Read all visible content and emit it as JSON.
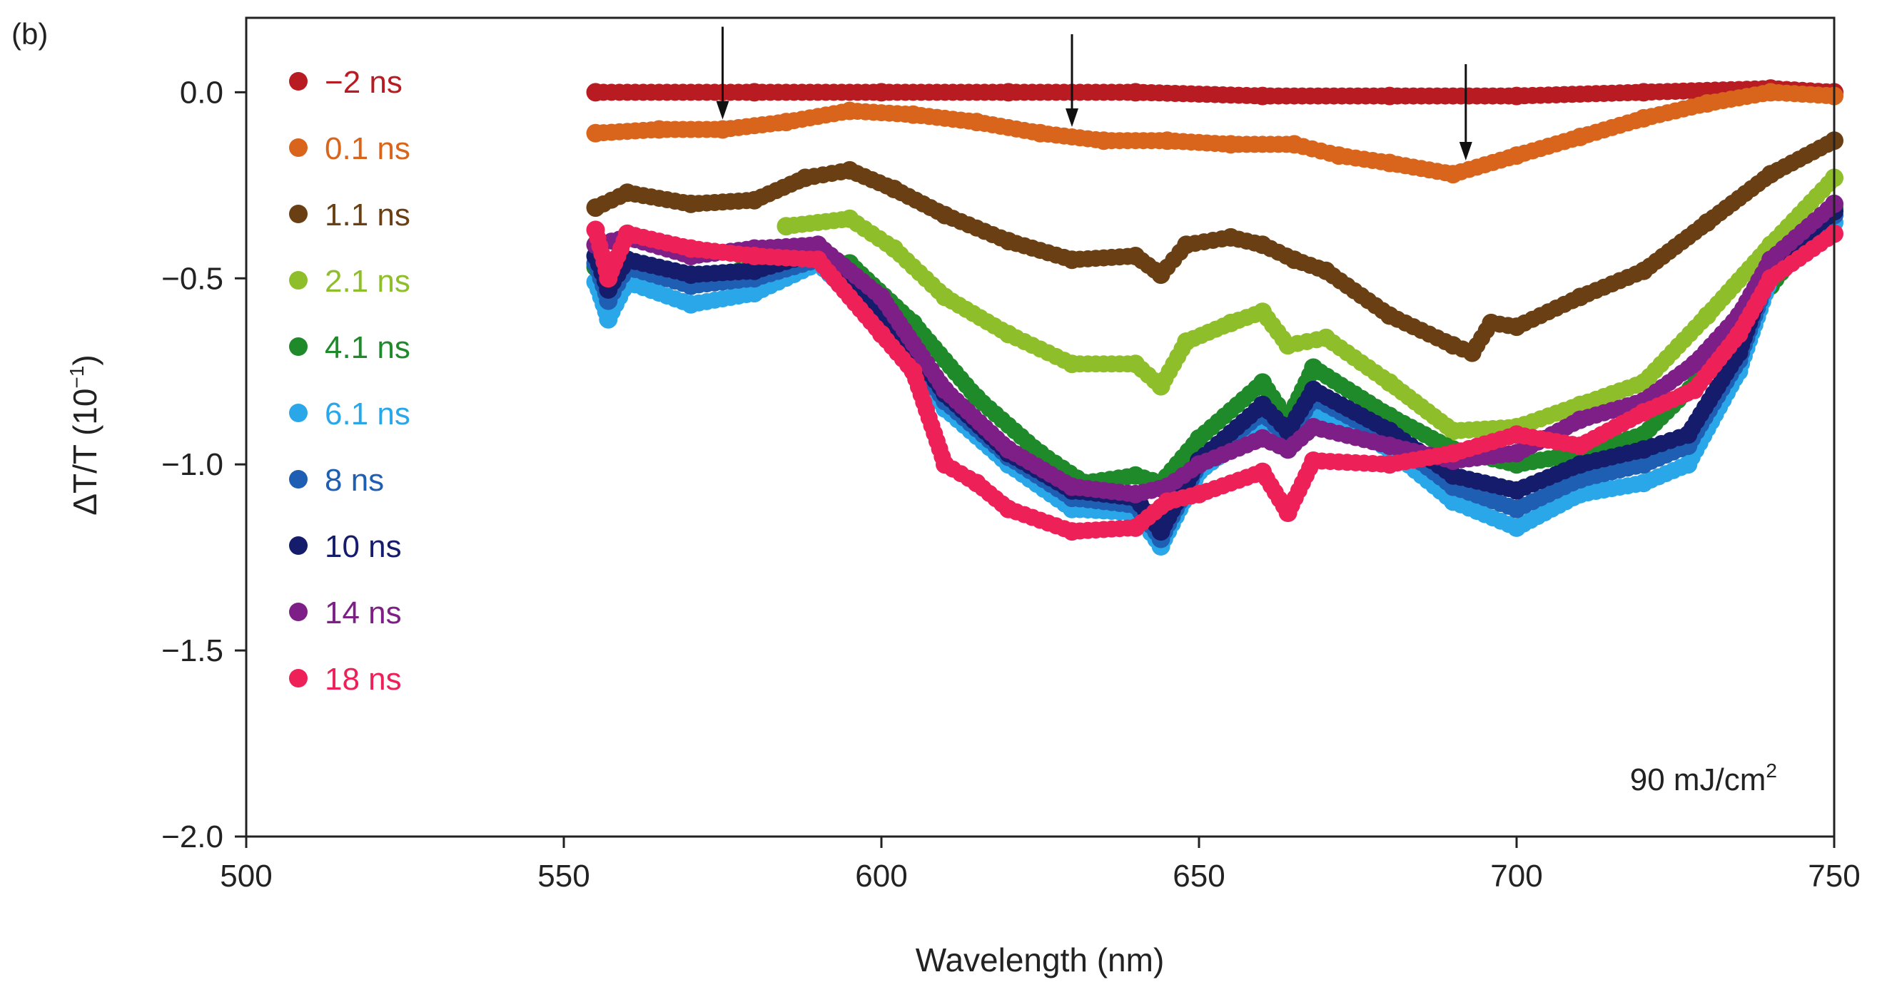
{
  "chart_data": {
    "type": "scatter",
    "panel_label": "(b)",
    "xlabel": "Wavelength (nm)",
    "ylabel_prefix": "ΔT/T (10",
    "ylabel_exponent": "−1",
    "ylabel_suffix": ")",
    "xlim": [
      500,
      750
    ],
    "ylim": [
      -2.0,
      0.2
    ],
    "x_ticks": [
      500,
      550,
      600,
      650,
      700,
      750
    ],
    "x_tick_labels": [
      "500",
      "550",
      "600",
      "650",
      "700",
      "750"
    ],
    "y_ticks": [
      0.0,
      -0.5,
      -1.0,
      -1.5,
      -2.0
    ],
    "y_tick_labels": [
      "0.0",
      "−0.5",
      "−1.0",
      "−1.5",
      "−2.0"
    ],
    "annotation_main": "90 mJ/cm",
    "annotation_sup": "2",
    "arrows_at_wavelength": [
      575,
      630,
      692
    ],
    "legend_position": "top-left",
    "series": [
      {
        "name": "−2 ns",
        "color": "#b81c22",
        "points": [
          [
            555,
            0.0
          ],
          [
            580,
            0.0
          ],
          [
            600,
            0.0
          ],
          [
            620,
            0.0
          ],
          [
            640,
            0.0
          ],
          [
            660,
            -0.01
          ],
          [
            680,
            -0.01
          ],
          [
            700,
            -0.01
          ],
          [
            720,
            0.0
          ],
          [
            740,
            0.01
          ],
          [
            750,
            0.0
          ]
        ]
      },
      {
        "name": "0.1 ns",
        "color": "#d9651d",
        "points": [
          [
            555,
            -0.11
          ],
          [
            565,
            -0.1
          ],
          [
            575,
            -0.1
          ],
          [
            585,
            -0.08
          ],
          [
            595,
            -0.05
          ],
          [
            605,
            -0.06
          ],
          [
            615,
            -0.08
          ],
          [
            625,
            -0.11
          ],
          [
            635,
            -0.13
          ],
          [
            645,
            -0.13
          ],
          [
            655,
            -0.14
          ],
          [
            665,
            -0.14
          ],
          [
            672,
            -0.17
          ],
          [
            680,
            -0.19
          ],
          [
            690,
            -0.22
          ],
          [
            700,
            -0.17
          ],
          [
            710,
            -0.12
          ],
          [
            720,
            -0.07
          ],
          [
            730,
            -0.03
          ],
          [
            740,
            0.0
          ],
          [
            750,
            -0.01
          ]
        ]
      },
      {
        "name": "1.1 ns",
        "color": "#6b3f14",
        "points": [
          [
            555,
            -0.31
          ],
          [
            560,
            -0.27
          ],
          [
            570,
            -0.3
          ],
          [
            580,
            -0.29
          ],
          [
            588,
            -0.23
          ],
          [
            595,
            -0.21
          ],
          [
            602,
            -0.26
          ],
          [
            610,
            -0.33
          ],
          [
            620,
            -0.4
          ],
          [
            630,
            -0.45
          ],
          [
            640,
            -0.44
          ],
          [
            644,
            -0.49
          ],
          [
            648,
            -0.41
          ],
          [
            655,
            -0.39
          ],
          [
            660,
            -0.41
          ],
          [
            665,
            -0.45
          ],
          [
            670,
            -0.48
          ],
          [
            680,
            -0.6
          ],
          [
            690,
            -0.68
          ],
          [
            693,
            -0.7
          ],
          [
            696,
            -0.62
          ],
          [
            700,
            -0.63
          ],
          [
            710,
            -0.55
          ],
          [
            720,
            -0.48
          ],
          [
            730,
            -0.35
          ],
          [
            740,
            -0.22
          ],
          [
            750,
            -0.13
          ]
        ]
      },
      {
        "name": "2.1 ns",
        "color": "#8ebf2a",
        "points": [
          [
            585,
            -0.36
          ],
          [
            595,
            -0.34
          ],
          [
            602,
            -0.42
          ],
          [
            610,
            -0.55
          ],
          [
            620,
            -0.65
          ],
          [
            630,
            -0.73
          ],
          [
            640,
            -0.73
          ],
          [
            644,
            -0.79
          ],
          [
            648,
            -0.67
          ],
          [
            655,
            -0.62
          ],
          [
            660,
            -0.59
          ],
          [
            664,
            -0.68
          ],
          [
            670,
            -0.66
          ],
          [
            680,
            -0.78
          ],
          [
            690,
            -0.91
          ],
          [
            700,
            -0.9
          ],
          [
            710,
            -0.84
          ],
          [
            720,
            -0.78
          ],
          [
            730,
            -0.6
          ],
          [
            740,
            -0.41
          ],
          [
            750,
            -0.23
          ]
        ]
      },
      {
        "name": "4.1 ns",
        "color": "#1e8a2a",
        "points": [
          [
            555,
            -0.47
          ],
          [
            570,
            -0.5
          ],
          [
            585,
            -0.46
          ],
          [
            595,
            -0.46
          ],
          [
            605,
            -0.62
          ],
          [
            615,
            -0.82
          ],
          [
            625,
            -0.97
          ],
          [
            632,
            -1.05
          ],
          [
            640,
            -1.03
          ],
          [
            644,
            -1.05
          ],
          [
            650,
            -0.93
          ],
          [
            660,
            -0.78
          ],
          [
            664,
            -0.88
          ],
          [
            668,
            -0.74
          ],
          [
            680,
            -0.87
          ],
          [
            690,
            -0.96
          ],
          [
            700,
            -1.0
          ],
          [
            710,
            -0.97
          ],
          [
            720,
            -0.92
          ],
          [
            730,
            -0.75
          ],
          [
            740,
            -0.52
          ],
          [
            750,
            -0.31
          ]
        ]
      },
      {
        "name": "6.1 ns",
        "color": "#2aa7e8",
        "points": [
          [
            555,
            -0.51
          ],
          [
            557,
            -0.61
          ],
          [
            560,
            -0.51
          ],
          [
            570,
            -0.57
          ],
          [
            580,
            -0.54
          ],
          [
            590,
            -0.46
          ],
          [
            600,
            -0.62
          ],
          [
            610,
            -0.85
          ],
          [
            620,
            -1.0
          ],
          [
            630,
            -1.12
          ],
          [
            640,
            -1.13
          ],
          [
            644,
            -1.22
          ],
          [
            650,
            -1.02
          ],
          [
            660,
            -0.89
          ],
          [
            664,
            -0.96
          ],
          [
            668,
            -0.85
          ],
          [
            680,
            -0.96
          ],
          [
            690,
            -1.1
          ],
          [
            700,
            -1.17
          ],
          [
            710,
            -1.08
          ],
          [
            720,
            -1.05
          ],
          [
            727,
            -1.0
          ],
          [
            735,
            -0.75
          ],
          [
            740,
            -0.5
          ],
          [
            750,
            -0.35
          ]
        ]
      },
      {
        "name": "8 ns",
        "color": "#1f5fb3",
        "points": [
          [
            555,
            -0.46
          ],
          [
            557,
            -0.56
          ],
          [
            560,
            -0.47
          ],
          [
            570,
            -0.52
          ],
          [
            580,
            -0.5
          ],
          [
            590,
            -0.45
          ],
          [
            600,
            -0.6
          ],
          [
            610,
            -0.83
          ],
          [
            620,
            -0.98
          ],
          [
            630,
            -1.09
          ],
          [
            640,
            -1.11
          ],
          [
            644,
            -1.2
          ],
          [
            650,
            -1.0
          ],
          [
            660,
            -0.86
          ],
          [
            664,
            -0.93
          ],
          [
            668,
            -0.82
          ],
          [
            680,
            -0.93
          ],
          [
            690,
            -1.06
          ],
          [
            700,
            -1.12
          ],
          [
            710,
            -1.04
          ],
          [
            720,
            -1.0
          ],
          [
            727,
            -0.95
          ],
          [
            735,
            -0.72
          ],
          [
            740,
            -0.48
          ],
          [
            750,
            -0.33
          ]
        ]
      },
      {
        "name": "10 ns",
        "color": "#141c6b",
        "points": [
          [
            555,
            -0.44
          ],
          [
            557,
            -0.53
          ],
          [
            560,
            -0.45
          ],
          [
            570,
            -0.49
          ],
          [
            580,
            -0.48
          ],
          [
            590,
            -0.43
          ],
          [
            600,
            -0.58
          ],
          [
            610,
            -0.81
          ],
          [
            620,
            -0.97
          ],
          [
            630,
            -1.07
          ],
          [
            640,
            -1.09
          ],
          [
            644,
            -1.18
          ],
          [
            650,
            -0.99
          ],
          [
            660,
            -0.84
          ],
          [
            664,
            -0.91
          ],
          [
            668,
            -0.8
          ],
          [
            680,
            -0.91
          ],
          [
            690,
            -1.03
          ],
          [
            700,
            -1.07
          ],
          [
            710,
            -1.0
          ],
          [
            720,
            -0.96
          ],
          [
            727,
            -0.92
          ],
          [
            735,
            -0.7
          ],
          [
            740,
            -0.46
          ],
          [
            750,
            -0.32
          ]
        ]
      },
      {
        "name": "14 ns",
        "color": "#7d1f86",
        "points": [
          [
            555,
            -0.41
          ],
          [
            560,
            -0.39
          ],
          [
            570,
            -0.44
          ],
          [
            580,
            -0.42
          ],
          [
            590,
            -0.41
          ],
          [
            600,
            -0.55
          ],
          [
            610,
            -0.8
          ],
          [
            620,
            -0.96
          ],
          [
            630,
            -1.06
          ],
          [
            640,
            -1.08
          ],
          [
            645,
            -1.06
          ],
          [
            650,
            -1.0
          ],
          [
            660,
            -0.93
          ],
          [
            664,
            -0.96
          ],
          [
            668,
            -0.9
          ],
          [
            680,
            -0.95
          ],
          [
            690,
            -0.99
          ],
          [
            700,
            -0.97
          ],
          [
            710,
            -0.88
          ],
          [
            720,
            -0.83
          ],
          [
            728,
            -0.73
          ],
          [
            735,
            -0.6
          ],
          [
            740,
            -0.45
          ],
          [
            750,
            -0.3
          ]
        ]
      },
      {
        "name": "18 ns",
        "color": "#ee2058",
        "points": [
          [
            555,
            -0.37
          ],
          [
            557,
            -0.5
          ],
          [
            560,
            -0.38
          ],
          [
            570,
            -0.42
          ],
          [
            580,
            -0.44
          ],
          [
            590,
            -0.45
          ],
          [
            600,
            -0.65
          ],
          [
            605,
            -0.75
          ],
          [
            610,
            -1.0
          ],
          [
            615,
            -1.05
          ],
          [
            620,
            -1.12
          ],
          [
            630,
            -1.18
          ],
          [
            640,
            -1.17
          ],
          [
            645,
            -1.1
          ],
          [
            650,
            -1.08
          ],
          [
            660,
            -1.02
          ],
          [
            664,
            -1.13
          ],
          [
            668,
            -0.99
          ],
          [
            680,
            -1.0
          ],
          [
            690,
            -0.97
          ],
          [
            700,
            -0.92
          ],
          [
            710,
            -0.95
          ],
          [
            720,
            -0.86
          ],
          [
            728,
            -0.8
          ],
          [
            735,
            -0.65
          ],
          [
            740,
            -0.5
          ],
          [
            750,
            -0.38
          ]
        ]
      }
    ]
  }
}
